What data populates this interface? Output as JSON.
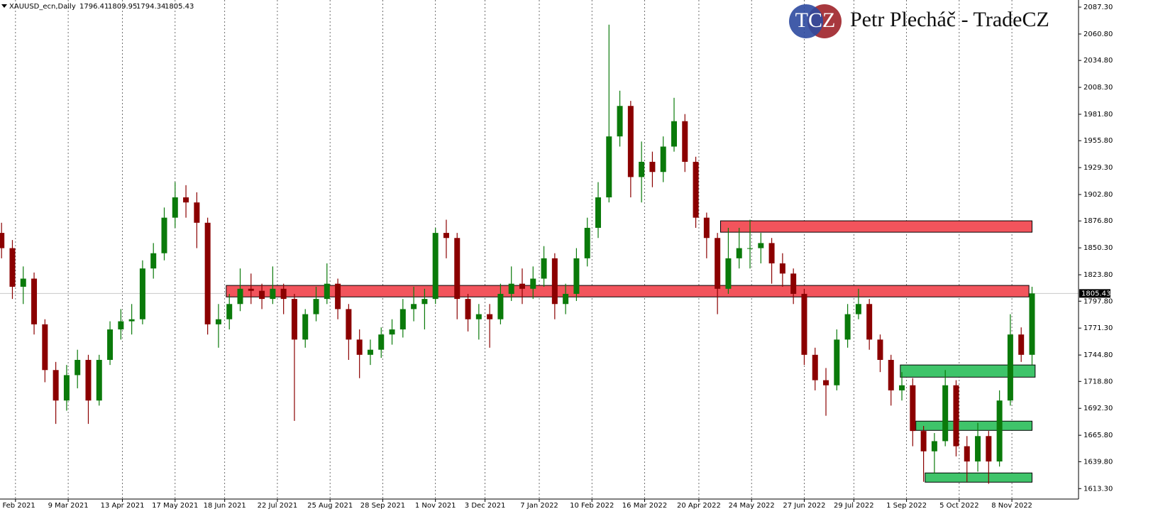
{
  "chart_data": {
    "type": "candlestick",
    "title": "XAUUSD_ecn,Daily",
    "ohlc_header": [
      1796.41,
      1809.95,
      1794.34,
      1805.43
    ],
    "logo_text": "TCZ",
    "brand": "Petr Plecháč - TradeCZ",
    "last_price": 1805.43,
    "up_color": "#0a7a0a",
    "down_color": "#8b0000",
    "ylim": [
      1603,
      2094.3
    ],
    "xlim": [
      "2021-01-24",
      "2022-12-21"
    ],
    "yticks": [
      {
        "value": 2087.3,
        "label": "2087.30"
      },
      {
        "value": 2060.8,
        "label": "2060.80"
      },
      {
        "value": 2034.8,
        "label": "2034.80"
      },
      {
        "value": 2008.3,
        "label": "2008.30"
      },
      {
        "value": 1981.8,
        "label": "1981.80"
      },
      {
        "value": 1955.8,
        "label": "1955.80"
      },
      {
        "value": 1929.3,
        "label": "1929.30"
      },
      {
        "value": 1902.8,
        "label": "1902.80"
      },
      {
        "value": 1876.8,
        "label": "1876.80"
      },
      {
        "value": 1850.3,
        "label": "1850.30"
      },
      {
        "value": 1823.8,
        "label": "1823.80"
      },
      {
        "value": 1797.8,
        "label": "1797.80"
      },
      {
        "value": 1771.3,
        "label": "1771.30"
      },
      {
        "value": 1744.8,
        "label": "1744.80"
      },
      {
        "value": 1718.8,
        "label": "1718.80"
      },
      {
        "value": 1692.3,
        "label": "1692.30"
      },
      {
        "value": 1665.8,
        "label": "1665.80"
      },
      {
        "value": 1639.8,
        "label": "1639.80"
      },
      {
        "value": 1613.3,
        "label": "1613.30"
      }
    ],
    "xticks": [
      {
        "value": "2021-02-03",
        "label": "3 Feb 2021"
      },
      {
        "value": "2021-03-09",
        "label": "9 Mar 2021"
      },
      {
        "value": "2021-04-13",
        "label": "13 Apr 2021"
      },
      {
        "value": "2021-05-17",
        "label": "17 May 2021"
      },
      {
        "value": "2021-06-18",
        "label": "18 Jun 2021"
      },
      {
        "value": "2021-07-22",
        "label": "22 Jul 2021"
      },
      {
        "value": "2021-08-25",
        "label": "25 Aug 2021"
      },
      {
        "value": "2021-09-28",
        "label": "28 Sep 2021"
      },
      {
        "value": "2021-11-01",
        "label": "1 Nov 2021"
      },
      {
        "value": "2021-12-03",
        "label": "3 Dec 2021"
      },
      {
        "value": "2022-01-07",
        "label": "7 Jan 2022"
      },
      {
        "value": "2022-02-10",
        "label": "10 Feb 2022"
      },
      {
        "value": "2022-03-16",
        "label": "16 Mar 2022"
      },
      {
        "value": "2022-04-20",
        "label": "20 Apr 2022"
      },
      {
        "value": "2022-05-24",
        "label": "24 May 2022"
      },
      {
        "value": "2022-06-27",
        "label": "27 Jun 2022"
      },
      {
        "value": "2022-07-29",
        "label": "29 Jul 2022"
      },
      {
        "value": "2022-09-01",
        "label": "1 Sep 2022"
      },
      {
        "value": "2022-10-05",
        "label": "5 Oct 2022"
      },
      {
        "value": "2022-11-08",
        "label": "8 Nov 2022"
      }
    ],
    "x": [
      "2021-01-25",
      "2021-02-01",
      "2021-02-08",
      "2021-02-15",
      "2021-02-22",
      "2021-03-01",
      "2021-03-08",
      "2021-03-15",
      "2021-03-22",
      "2021-03-29",
      "2021-04-05",
      "2021-04-12",
      "2021-04-19",
      "2021-04-26",
      "2021-05-03",
      "2021-05-10",
      "2021-05-17",
      "2021-05-24",
      "2021-05-31",
      "2021-06-07",
      "2021-06-14",
      "2021-06-21",
      "2021-06-28",
      "2021-07-05",
      "2021-07-12",
      "2021-07-19",
      "2021-07-26",
      "2021-08-02",
      "2021-08-09",
      "2021-08-16",
      "2021-08-23",
      "2021-08-30",
      "2021-09-06",
      "2021-09-13",
      "2021-09-20",
      "2021-09-27",
      "2021-10-04",
      "2021-10-11",
      "2021-10-18",
      "2021-10-25",
      "2021-11-01",
      "2021-11-08",
      "2021-11-15",
      "2021-11-22",
      "2021-11-29",
      "2021-12-06",
      "2021-12-13",
      "2021-12-20",
      "2021-12-27",
      "2022-01-03",
      "2022-01-10",
      "2022-01-17",
      "2022-01-24",
      "2022-01-31",
      "2022-02-07",
      "2022-02-14",
      "2022-02-21",
      "2022-02-28",
      "2022-03-07",
      "2022-03-14",
      "2022-03-21",
      "2022-03-28",
      "2022-04-04",
      "2022-04-11",
      "2022-04-18",
      "2022-04-25",
      "2022-05-02",
      "2022-05-09",
      "2022-05-16",
      "2022-05-23",
      "2022-05-30",
      "2022-06-06",
      "2022-06-13",
      "2022-06-20",
      "2022-06-27",
      "2022-07-04",
      "2022-07-11",
      "2022-07-18",
      "2022-07-25",
      "2022-08-01",
      "2022-08-08",
      "2022-08-15",
      "2022-08-22",
      "2022-08-29",
      "2022-09-05",
      "2022-09-12",
      "2022-09-19",
      "2022-09-26",
      "2022-10-03",
      "2022-10-10",
      "2022-10-17",
      "2022-10-24",
      "2022-10-31",
      "2022-11-07",
      "2022-11-14",
      "2022-11-21"
    ],
    "open": [
      1865,
      1850,
      1812,
      1820,
      1775,
      1730,
      1700,
      1725,
      1740,
      1700,
      1740,
      1770,
      1778,
      1780,
      1830,
      1845,
      1880,
      1900,
      1895,
      1875,
      1775,
      1780,
      1795,
      1810,
      1808,
      1800,
      1810,
      1800,
      1760,
      1785,
      1800,
      1815,
      1790,
      1760,
      1745,
      1750,
      1765,
      1770,
      1790,
      1795,
      1800,
      1865,
      1860,
      1800,
      1780,
      1785,
      1780,
      1805,
      1815,
      1810,
      1820,
      1840,
      1795,
      1805,
      1840,
      1870,
      1900,
      1960,
      1990,
      1920,
      1935,
      1925,
      1950,
      1975,
      1935,
      1880,
      1860,
      1810,
      1840,
      1850,
      1850,
      1855,
      1835,
      1825,
      1805,
      1745,
      1720,
      1715,
      1760,
      1785,
      1795,
      1760,
      1740,
      1710,
      1715,
      1670,
      1650,
      1660,
      1715,
      1655,
      1640,
      1665,
      1640,
      1700,
      1765,
      1745
    ],
    "high": [
      1875,
      1858,
      1832,
      1826,
      1780,
      1738,
      1735,
      1750,
      1745,
      1745,
      1778,
      1790,
      1795,
      1838,
      1855,
      1890,
      1915,
      1912,
      1905,
      1880,
      1795,
      1805,
      1830,
      1825,
      1815,
      1832,
      1815,
      1805,
      1790,
      1812,
      1835,
      1820,
      1795,
      1770,
      1760,
      1772,
      1780,
      1800,
      1812,
      1810,
      1870,
      1878,
      1865,
      1805,
      1795,
      1795,
      1815,
      1832,
      1830,
      1832,
      1852,
      1845,
      1815,
      1850,
      1880,
      1915,
      2070,
      2005,
      1995,
      1955,
      1945,
      1960,
      1998,
      1982,
      1940,
      1885,
      1865,
      1870,
      1870,
      1878,
      1865,
      1860,
      1845,
      1830,
      1810,
      1752,
      1732,
      1770,
      1795,
      1810,
      1800,
      1765,
      1745,
      1728,
      1722,
      1675,
      1668,
      1730,
      1720,
      1665,
      1678,
      1670,
      1710,
      1785,
      1772,
      1812
    ],
    "low": [
      1840,
      1800,
      1795,
      1765,
      1718,
      1677,
      1690,
      1712,
      1677,
      1695,
      1735,
      1760,
      1765,
      1775,
      1820,
      1838,
      1870,
      1880,
      1850,
      1765,
      1752,
      1770,
      1788,
      1795,
      1790,
      1795,
      1785,
      1680,
      1752,
      1778,
      1795,
      1780,
      1740,
      1722,
      1735,
      1742,
      1755,
      1762,
      1778,
      1770,
      1795,
      1840,
      1780,
      1768,
      1760,
      1752,
      1775,
      1798,
      1795,
      1800,
      1812,
      1780,
      1785,
      1798,
      1832,
      1860,
      1895,
      1950,
      1900,
      1895,
      1910,
      1915,
      1945,
      1925,
      1870,
      1840,
      1785,
      1805,
      1830,
      1830,
      1835,
      1815,
      1812,
      1795,
      1735,
      1710,
      1685,
      1710,
      1752,
      1780,
      1750,
      1728,
      1695,
      1700,
      1655,
      1620,
      1628,
      1655,
      1645,
      1620,
      1630,
      1618,
      1635,
      1695,
      1738,
      1735
    ],
    "close": [
      1850,
      1812,
      1820,
      1775,
      1730,
      1700,
      1725,
      1740,
      1700,
      1740,
      1770,
      1778,
      1780,
      1830,
      1845,
      1880,
      1900,
      1895,
      1875,
      1775,
      1780,
      1795,
      1810,
      1808,
      1800,
      1810,
      1800,
      1760,
      1785,
      1800,
      1815,
      1790,
      1760,
      1745,
      1750,
      1765,
      1770,
      1790,
      1795,
      1800,
      1865,
      1860,
      1800,
      1780,
      1785,
      1780,
      1805,
      1815,
      1810,
      1820,
      1840,
      1795,
      1805,
      1840,
      1870,
      1900,
      1960,
      1990,
      1920,
      1935,
      1925,
      1950,
      1975,
      1935,
      1880,
      1860,
      1810,
      1840,
      1850,
      1850,
      1855,
      1835,
      1825,
      1805,
      1745,
      1720,
      1715,
      1760,
      1785,
      1795,
      1760,
      1740,
      1710,
      1715,
      1670,
      1650,
      1660,
      1715,
      1655,
      1640,
      1665,
      1640,
      1700,
      1765,
      1745,
      1805.43
    ],
    "zones": [
      {
        "x0": "2021-06-19",
        "x1": "2022-11-19",
        "y0": 1802,
        "y1": 1813.3,
        "color": "#f2545c"
      },
      {
        "x0": "2022-05-04",
        "x1": "2022-11-21",
        "y0": 1865.7,
        "y1": 1876.9,
        "color": "#f2545c"
      },
      {
        "x0": "2022-08-28",
        "x1": "2022-11-23",
        "y0": 1723,
        "y1": 1735,
        "color": "#3fc46a"
      },
      {
        "x0": "2022-09-07",
        "x1": "2022-11-21",
        "y0": 1670.6,
        "y1": 1679.7,
        "color": "#3fc46a"
      },
      {
        "x0": "2022-09-13",
        "x1": "2022-11-21",
        "y0": 1619.6,
        "y1": 1628.7,
        "color": "#3fc46a"
      }
    ]
  }
}
